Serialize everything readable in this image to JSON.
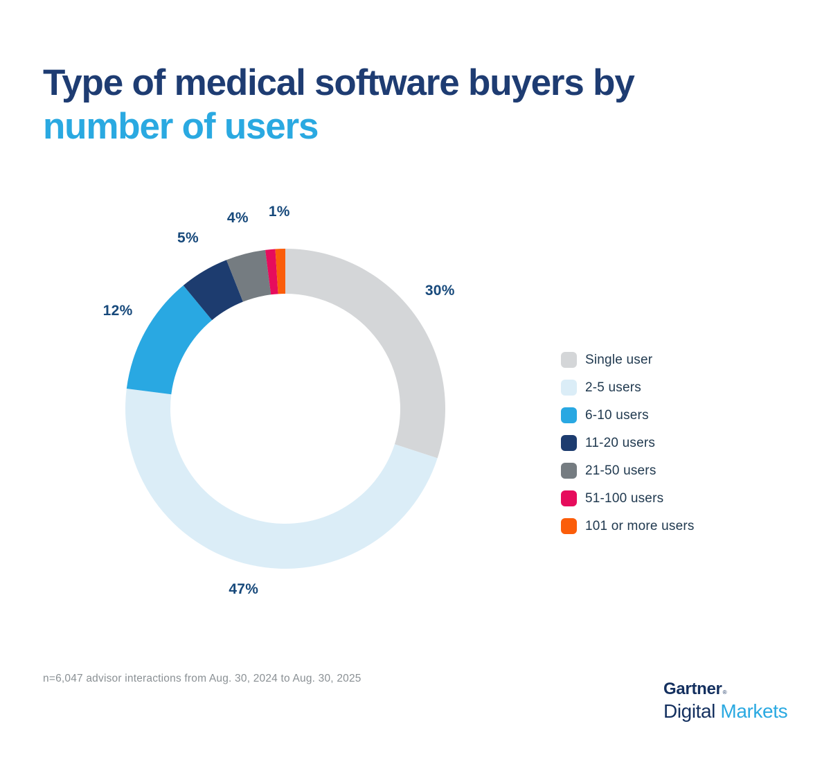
{
  "header": {
    "title_line1": "Type of medical software buyers by",
    "title_line2": "number of users",
    "title_line1_color": "#1e3c72",
    "title_line2_color": "#2aa9e1"
  },
  "chart_data": {
    "type": "pie",
    "variant": "donut",
    "title": "Type of medical software buyers by number of users",
    "unit": "percent",
    "start_angle_deg": 0,
    "direction": "clockwise",
    "inner_radius_ratio": 0.72,
    "legend_position": "right",
    "labels_position": "outside",
    "label_color": "#17497b",
    "categories": [
      "Single user",
      "2-5 users",
      "6-10 users",
      "11-20 users",
      "21-50 users",
      "51-100 users",
      "101 or more users"
    ],
    "values": [
      30,
      47,
      12,
      5,
      4,
      1,
      1
    ],
    "segments": [
      {
        "key": "single-user",
        "legend_label": "Single user",
        "value": 30,
        "color": "#d4d6d8",
        "pct_label": "30%"
      },
      {
        "key": "2-5-users",
        "legend_label": "2-5 users",
        "value": 47,
        "color": "#dbedf7",
        "pct_label": "47%"
      },
      {
        "key": "6-10-users",
        "legend_label": "6-10 users",
        "value": 12,
        "color": "#29a8e2",
        "pct_label": "12%"
      },
      {
        "key": "11-20-users",
        "legend_label": "11-20 users",
        "value": 5,
        "color": "#1d3c6f",
        "pct_label": "5%"
      },
      {
        "key": "21-50-users",
        "legend_label": "21-50 users",
        "value": 4,
        "color": "#757c81",
        "pct_label": "4%"
      },
      {
        "key": "51-100-users",
        "legend_label": "51-100 users",
        "value": 1,
        "color": "#e60c5c",
        "pct_label": null
      },
      {
        "key": "101-or-more-users",
        "legend_label": "101 or more users",
        "value": 1,
        "color": "#fb5d0a",
        "pct_label": "1%"
      }
    ]
  },
  "footnote": {
    "text": "n=6,047 advisor interactions from Aug. 30, 2024 to Aug. 30, 2025"
  },
  "logo": {
    "brand": "Gartner",
    "registered_mark": "®",
    "sub_brand_dark": "Digital",
    "sub_brand_light": "Markets",
    "brand_color": "#14305f",
    "light_color": "#2aa9e1"
  }
}
